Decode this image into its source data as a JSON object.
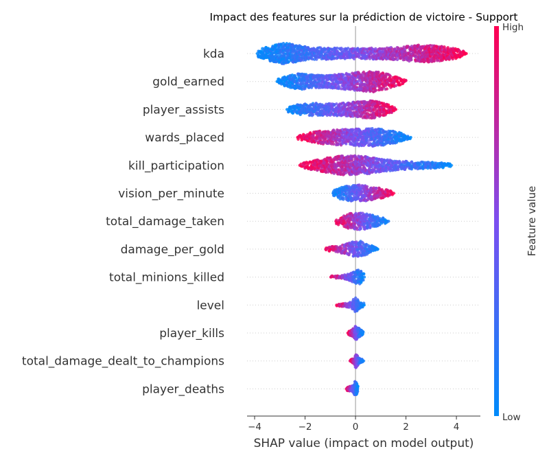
{
  "chart_data": {
    "type": "scatter",
    "subtype": "shap-beeswarm",
    "title": "Impact des features sur la prédiction de victoire - Support",
    "xlabel": "SHAP value (impact on model output)",
    "xlim": [
      -4.3,
      4.95
    ],
    "xticks": [
      -4,
      -2,
      0,
      2,
      4
    ],
    "xtick_labels": [
      "−4",
      "−2",
      "0",
      "2",
      "4"
    ],
    "colorbar": {
      "label": "Feature value",
      "high_label": "High",
      "low_label": "Low",
      "low_color": "#008bfb",
      "high_color": "#ff0051"
    },
    "grid": false,
    "features": [
      {
        "name": "kda",
        "range": [
          -3.9,
          4.4
        ],
        "color_trend": "positive",
        "density": [
          [
            -3.9,
            0.3
          ],
          [
            -3.4,
            0.7
          ],
          [
            -2.8,
            1.0
          ],
          [
            -2.3,
            0.8
          ],
          [
            -1.8,
            0.55
          ],
          [
            -1.0,
            0.55
          ],
          [
            -0.3,
            0.5
          ],
          [
            0.3,
            0.5
          ],
          [
            1.0,
            0.55
          ],
          [
            1.8,
            0.6
          ],
          [
            2.4,
            0.8
          ],
          [
            3.1,
            0.8
          ],
          [
            3.6,
            0.6
          ],
          [
            4.0,
            0.45
          ],
          [
            4.4,
            0.15
          ]
        ]
      },
      {
        "name": "gold_earned",
        "range": [
          -3.1,
          2.0
        ],
        "color_trend": "positive",
        "density": [
          [
            -3.1,
            0.2
          ],
          [
            -2.6,
            0.6
          ],
          [
            -2.2,
            0.75
          ],
          [
            -1.6,
            0.6
          ],
          [
            -1.0,
            0.6
          ],
          [
            -0.4,
            0.75
          ],
          [
            0.2,
            0.9
          ],
          [
            0.7,
            1.0
          ],
          [
            1.2,
            0.75
          ],
          [
            1.6,
            0.45
          ],
          [
            2.0,
            0.15
          ]
        ]
      },
      {
        "name": "player_assists",
        "range": [
          -2.7,
          1.6
        ],
        "color_trend": "positive",
        "density": [
          [
            -2.7,
            0.25
          ],
          [
            -2.2,
            0.5
          ],
          [
            -1.7,
            0.6
          ],
          [
            -1.1,
            0.55
          ],
          [
            -0.5,
            0.6
          ],
          [
            0.0,
            0.7
          ],
          [
            0.5,
            0.85
          ],
          [
            0.9,
            0.75
          ],
          [
            1.3,
            0.45
          ],
          [
            1.6,
            0.15
          ]
        ]
      },
      {
        "name": "wards_placed",
        "range": [
          -2.3,
          2.2
        ],
        "color_trend": "negative",
        "density": [
          [
            -2.3,
            0.15
          ],
          [
            -1.9,
            0.4
          ],
          [
            -1.4,
            0.6
          ],
          [
            -0.9,
            0.7
          ],
          [
            -0.4,
            0.75
          ],
          [
            0.1,
            0.8
          ],
          [
            0.6,
            0.85
          ],
          [
            1.1,
            0.75
          ],
          [
            1.6,
            0.55
          ],
          [
            2.0,
            0.3
          ],
          [
            2.2,
            0.1
          ]
        ]
      },
      {
        "name": "kill_participation",
        "range": [
          -2.2,
          3.8
        ],
        "color_trend": "negative",
        "density": [
          [
            -2.2,
            0.15
          ],
          [
            -1.7,
            0.45
          ],
          [
            -1.1,
            0.7
          ],
          [
            -0.5,
            0.9
          ],
          [
            0.0,
            0.9
          ],
          [
            0.5,
            0.8
          ],
          [
            1.0,
            0.6
          ],
          [
            1.6,
            0.45
          ],
          [
            2.2,
            0.35
          ],
          [
            2.8,
            0.3
          ],
          [
            3.4,
            0.25
          ],
          [
            3.8,
            0.12
          ]
        ]
      },
      {
        "name": "vision_per_minute",
        "range": [
          -0.9,
          1.5
        ],
        "color_trend": "positive",
        "density": [
          [
            -0.9,
            0.25
          ],
          [
            -0.6,
            0.55
          ],
          [
            -0.3,
            0.7
          ],
          [
            0.0,
            0.85
          ],
          [
            0.3,
            0.75
          ],
          [
            0.7,
            0.6
          ],
          [
            1.1,
            0.45
          ],
          [
            1.5,
            0.15
          ]
        ]
      },
      {
        "name": "total_damage_taken",
        "range": [
          -0.8,
          1.3
        ],
        "color_trend": "negative",
        "density": [
          [
            -0.8,
            0.2
          ],
          [
            -0.5,
            0.5
          ],
          [
            -0.2,
            0.75
          ],
          [
            0.1,
            0.8
          ],
          [
            0.4,
            0.75
          ],
          [
            0.8,
            0.5
          ],
          [
            1.1,
            0.3
          ],
          [
            1.3,
            0.1
          ]
        ]
      },
      {
        "name": "damage_per_gold",
        "range": [
          -1.2,
          0.9
        ],
        "color_trend": "negative",
        "density": [
          [
            -1.2,
            0.15
          ],
          [
            -0.8,
            0.3
          ],
          [
            -0.4,
            0.45
          ],
          [
            -0.1,
            0.7
          ],
          [
            0.2,
            0.75
          ],
          [
            0.5,
            0.45
          ],
          [
            0.9,
            0.15
          ]
        ]
      },
      {
        "name": "total_minions_killed",
        "range": [
          -1.0,
          0.35
        ],
        "color_trend": "negative",
        "density": [
          [
            -1.0,
            0.1
          ],
          [
            -0.6,
            0.15
          ],
          [
            -0.2,
            0.35
          ],
          [
            0.0,
            0.6
          ],
          [
            0.15,
            0.75
          ],
          [
            0.35,
            0.25
          ]
        ]
      },
      {
        "name": "level",
        "range": [
          -0.75,
          0.35
        ],
        "color_trend": "negative",
        "density": [
          [
            -0.75,
            0.12
          ],
          [
            -0.4,
            0.15
          ],
          [
            -0.15,
            0.3
          ],
          [
            0.0,
            0.7
          ],
          [
            0.15,
            0.35
          ],
          [
            0.35,
            0.15
          ]
        ]
      },
      {
        "name": "player_kills",
        "range": [
          -0.3,
          0.3
        ],
        "color_trend": "negative",
        "density": [
          [
            -0.3,
            0.12
          ],
          [
            -0.1,
            0.35
          ],
          [
            0.0,
            0.65
          ],
          [
            0.1,
            0.5
          ],
          [
            0.3,
            0.12
          ]
        ]
      },
      {
        "name": "total_damage_dealt_to_champions",
        "range": [
          -0.2,
          0.3
        ],
        "color_trend": "negative",
        "density": [
          [
            -0.2,
            0.12
          ],
          [
            -0.05,
            0.3
          ],
          [
            0.02,
            0.7
          ],
          [
            0.1,
            0.3
          ],
          [
            0.3,
            0.1
          ]
        ]
      },
      {
        "name": "player_deaths",
        "range": [
          -0.35,
          0.1
        ],
        "color_trend": "negative",
        "density": [
          [
            -0.35,
            0.15
          ],
          [
            -0.1,
            0.3
          ],
          [
            0.0,
            0.75
          ],
          [
            0.1,
            0.2
          ]
        ]
      }
    ]
  }
}
